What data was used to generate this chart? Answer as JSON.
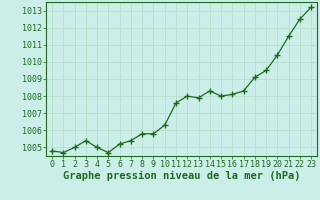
{
  "x": [
    0,
    1,
    2,
    3,
    4,
    5,
    6,
    7,
    8,
    9,
    10,
    11,
    12,
    13,
    14,
    15,
    16,
    17,
    18,
    19,
    20,
    21,
    22,
    23
  ],
  "y": [
    1004.8,
    1004.7,
    1005.0,
    1005.4,
    1005.0,
    1004.7,
    1005.2,
    1005.4,
    1005.8,
    1005.8,
    1006.3,
    1007.6,
    1008.0,
    1007.9,
    1008.3,
    1008.0,
    1008.1,
    1008.3,
    1009.1,
    1009.5,
    1010.4,
    1011.5,
    1012.5,
    1013.2
  ],
  "ylim": [
    1004.5,
    1013.5
  ],
  "xlim": [
    -0.5,
    23.5
  ],
  "yticks": [
    1005,
    1006,
    1007,
    1008,
    1009,
    1010,
    1011,
    1012,
    1013
  ],
  "xticks": [
    0,
    1,
    2,
    3,
    4,
    5,
    6,
    7,
    8,
    9,
    10,
    11,
    12,
    13,
    14,
    15,
    16,
    17,
    18,
    19,
    20,
    21,
    22,
    23
  ],
  "xlabel": "Graphe pression niveau de la mer (hPa)",
  "line_color": "#1e6b1e",
  "marker": "+",
  "marker_size": 5,
  "bg_color": "#cceee8",
  "grid_color": "#bbddcc",
  "tick_fontsize": 6.0,
  "xlabel_fontsize": 7.5,
  "line_width": 0.9
}
